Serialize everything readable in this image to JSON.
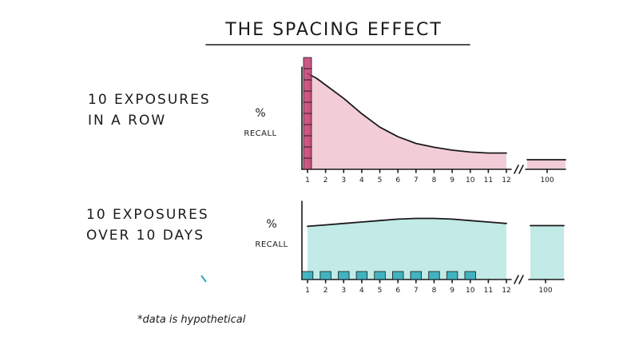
{
  "title": "THE SPACING EFFECT",
  "footnote": "*data is hypothetical",
  "colors": {
    "pink": "#e7a3b6",
    "pink_dark": "#c33c6e",
    "teal": "#8fd8d2",
    "teal_dark": "#2aa9b8",
    "ink": "#1a1a1a"
  },
  "chart_data": [
    {
      "type": "area",
      "row_label": [
        "10 EXPOSURES",
        "IN A ROW"
      ],
      "ylabel_pct": "%",
      "ylabel": "RECALL",
      "categories": [
        "1",
        "2",
        "3",
        "4",
        "5",
        "6",
        "7",
        "8",
        "9",
        "10",
        "11",
        "12"
      ],
      "extra_tick": "100",
      "exposure_days": [
        1,
        1,
        1,
        1,
        1,
        1,
        1,
        1,
        1,
        1
      ],
      "recall_curve": [
        {
          "x": 1.0,
          "y": 100
        },
        {
          "x": 1.5,
          "y": 95
        },
        {
          "x": 2,
          "y": 88
        },
        {
          "x": 3,
          "y": 74
        },
        {
          "x": 4,
          "y": 58
        },
        {
          "x": 5,
          "y": 44
        },
        {
          "x": 6,
          "y": 34
        },
        {
          "x": 7,
          "y": 27
        },
        {
          "x": 8,
          "y": 23
        },
        {
          "x": 9,
          "y": 20
        },
        {
          "x": 10,
          "y": 18
        },
        {
          "x": 11,
          "y": 17
        },
        {
          "x": 12,
          "y": 17
        }
      ],
      "recall_at_100": 10,
      "ylim": [
        0,
        100
      ]
    },
    {
      "type": "area",
      "row_label": [
        "10 EXPOSURES",
        "OVER 10 DAYS"
      ],
      "ylabel_pct": "%",
      "ylabel": "RECALL",
      "categories": [
        "1",
        "2",
        "3",
        "4",
        "5",
        "6",
        "7",
        "8",
        "9",
        "10",
        "11",
        "12"
      ],
      "extra_tick": "100",
      "exposure_days": [
        1,
        2,
        3,
        4,
        5,
        6,
        7,
        8,
        9,
        10
      ],
      "recall_curve": [
        {
          "x": 1,
          "y": 74
        },
        {
          "x": 2,
          "y": 76
        },
        {
          "x": 3,
          "y": 78
        },
        {
          "x": 4,
          "y": 80
        },
        {
          "x": 5,
          "y": 82
        },
        {
          "x": 6,
          "y": 84
        },
        {
          "x": 7,
          "y": 85
        },
        {
          "x": 8,
          "y": 85
        },
        {
          "x": 9,
          "y": 84
        },
        {
          "x": 10,
          "y": 82
        },
        {
          "x": 11,
          "y": 80
        },
        {
          "x": 12,
          "y": 78
        }
      ],
      "recall_at_100": 75,
      "ylim": [
        0,
        100
      ]
    }
  ]
}
